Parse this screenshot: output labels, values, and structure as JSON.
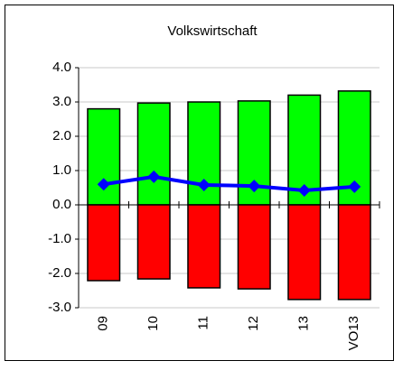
{
  "chart_data": {
    "type": "bar-line",
    "title": "Volkswirtschaft",
    "categories": [
      "09",
      "10",
      "11",
      "12",
      "13",
      "VO13"
    ],
    "series": [
      {
        "type": "bar",
        "color": "#00ff00",
        "values": [
          2.8,
          2.97,
          3.0,
          3.03,
          3.2,
          3.32
        ]
      },
      {
        "type": "bar",
        "color": "#ff0000",
        "values": [
          -2.21,
          -2.16,
          -2.42,
          -2.45,
          -2.76,
          -2.76
        ]
      },
      {
        "type": "line",
        "color": "#0000ff",
        "values": [
          0.6,
          0.82,
          0.58,
          0.55,
          0.42,
          0.53
        ]
      }
    ],
    "ylim": [
      -3,
      4
    ],
    "yticks": [
      {
        "value": -3,
        "label": "-3.0"
      },
      {
        "value": -2,
        "label": "-2.0"
      },
      {
        "value": -1,
        "label": "-1.0"
      },
      {
        "value": 0,
        "label": "0.0"
      },
      {
        "value": 1,
        "label": "1.0"
      },
      {
        "value": 2,
        "label": "2.0"
      },
      {
        "value": 3,
        "label": "3.0"
      },
      {
        "value": 4,
        "label": "4.0"
      }
    ],
    "grid": true
  }
}
